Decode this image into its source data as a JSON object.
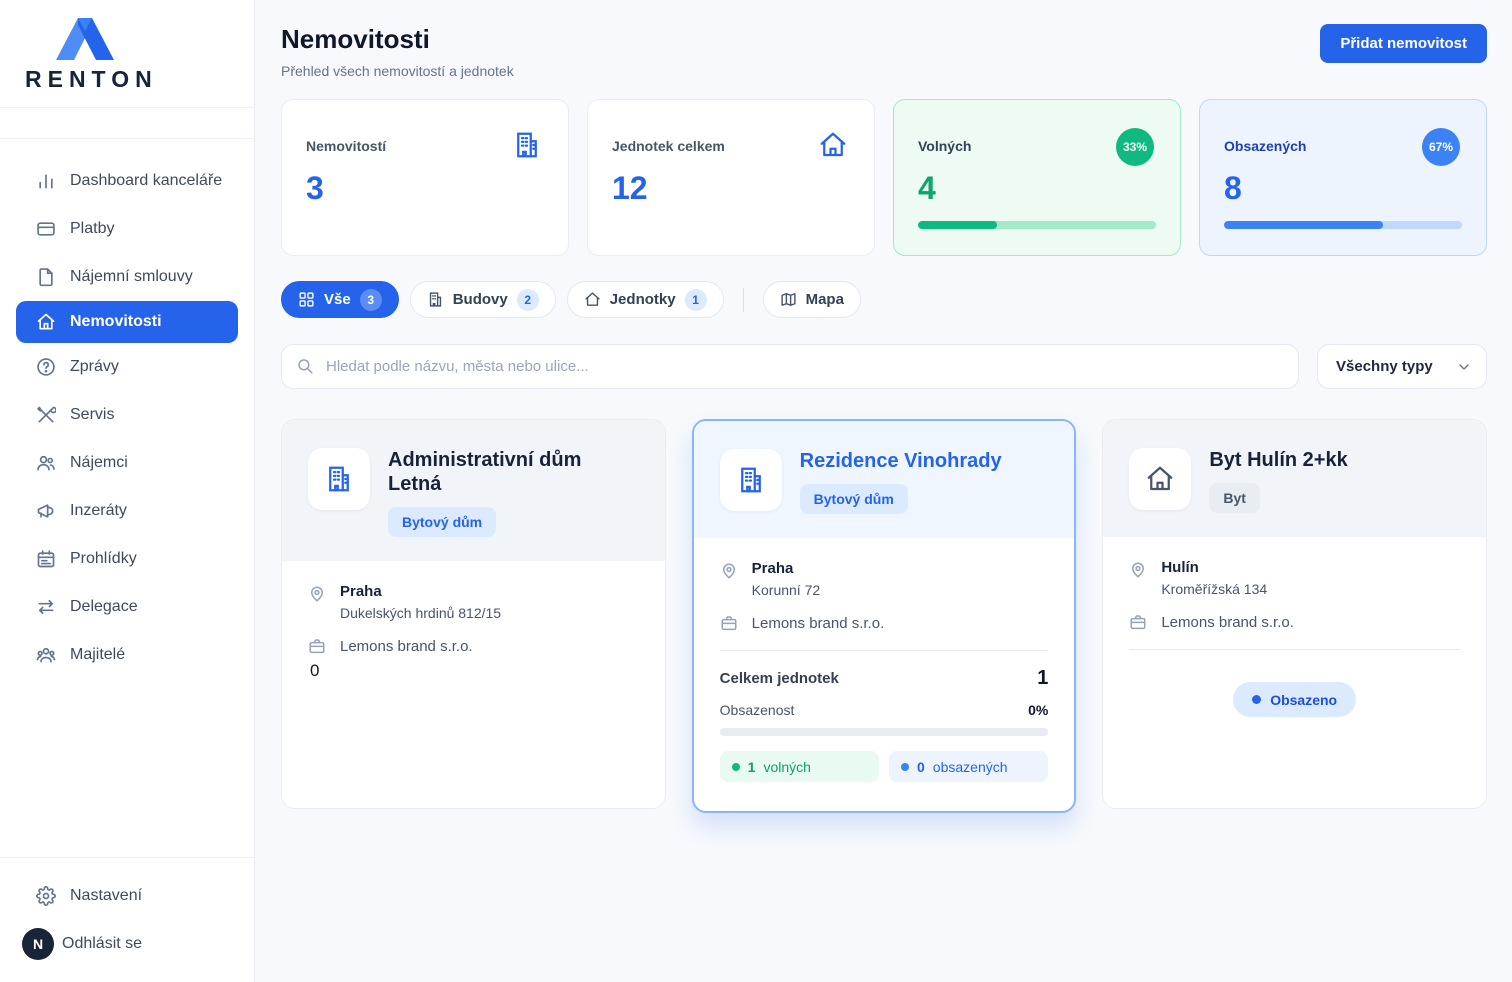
{
  "brand": {
    "name": "RENTON"
  },
  "sidebar": {
    "items": [
      {
        "label": "Dashboard kanceláře"
      },
      {
        "label": "Platby"
      },
      {
        "label": "Nájemní smlouvy"
      },
      {
        "label": "Nemovitosti"
      },
      {
        "label": "Zprávy"
      },
      {
        "label": "Servis"
      },
      {
        "label": "Nájemci"
      },
      {
        "label": "Inzeráty"
      },
      {
        "label": "Prohlídky"
      },
      {
        "label": "Delegace"
      },
      {
        "label": "Majitelé"
      }
    ],
    "footer": {
      "settings_label": "Nastavení",
      "logout_label": "Odhlásit se",
      "avatar_initial": "N"
    }
  },
  "header": {
    "title": "Nemovitosti",
    "subtitle": "Přehled všech nemovitostí a jednotek",
    "add_button_label": "Přidat nemovitost"
  },
  "stats": {
    "properties": {
      "label": "Nemovitostí",
      "value": "3"
    },
    "units_total": {
      "label": "Jednotek celkem",
      "value": "12"
    },
    "vacant": {
      "label": "Volných",
      "value": "4",
      "badge": "33%",
      "progress": 33
    },
    "occupied": {
      "label": "Obsazených",
      "value": "8",
      "badge": "67%",
      "progress": 67
    }
  },
  "filters": {
    "tabs": {
      "all": {
        "label": "Vše",
        "count": "3"
      },
      "buildings": {
        "label": "Budovy",
        "count": "2"
      },
      "units": {
        "label": "Jednotky",
        "count": "1"
      },
      "map": {
        "label": "Mapa"
      }
    },
    "search_placeholder": "Hledat podle názvu, města nebo ulice...",
    "type_filter_label": "Všechny typy"
  },
  "properties": {
    "card1": {
      "title": "Administrativní dům Letná",
      "type_badge": "Bytový dům",
      "city": "Praha",
      "street": "Dukelských hrdinů 812/15",
      "company": "Lemons brand s.r.o.",
      "note": "0"
    },
    "card2": {
      "title": "Rezidence Vinohrady",
      "type_badge": "Bytový dům",
      "city": "Praha",
      "street": "Korunní 72",
      "company": "Lemons brand s.r.o.",
      "total_units_label": "Celkem jednotek",
      "total_units": "1",
      "occupancy_label": "Obsazenost",
      "occupancy_value": "0%",
      "occupancy_progress": 0,
      "free_count": "1",
      "free_label": "volných",
      "occupied_count": "0",
      "occupied_label": "obsazených"
    },
    "card3": {
      "title": "Byt Hulín 2+kk",
      "type_badge": "Byt",
      "city": "Hulín",
      "street": "Kroměřížská 134",
      "company": "Lemons brand s.r.o.",
      "status": "Obsazeno"
    }
  },
  "colors": {
    "accent_blue": "#2563eb",
    "green": "#10b981",
    "progress_blue": "#3b82f6",
    "sidebar_active_bg": "#2563eb"
  }
}
